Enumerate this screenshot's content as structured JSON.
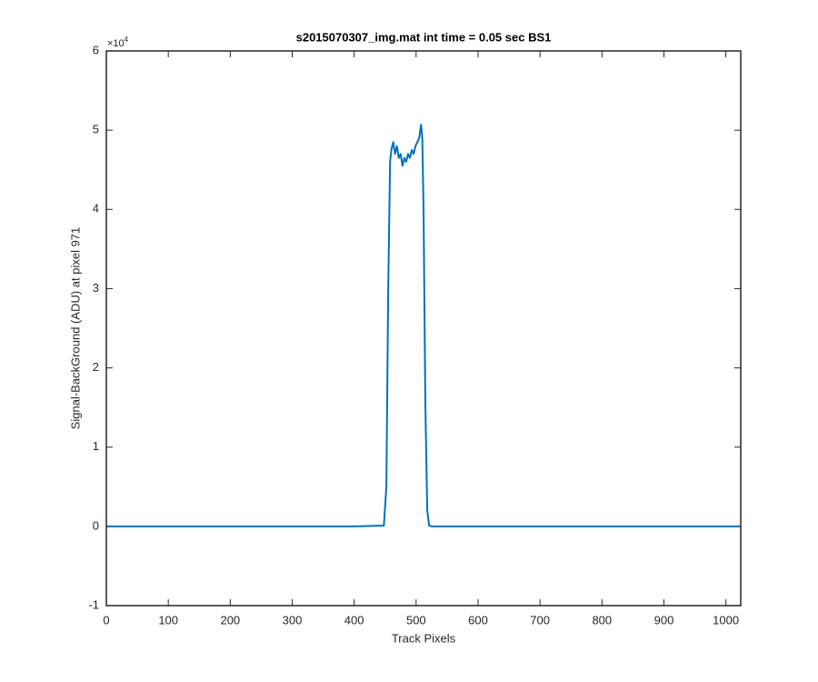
{
  "chart_data": {
    "type": "line",
    "title": "s2015070307_img.mat int time = 0.05 sec   BS1",
    "xlabel": "Track Pixels",
    "ylabel": "Signal-BackGround (ADU) at pixel 971",
    "y_exponent": {
      "base": "×10",
      "power": "4"
    },
    "xlim": [
      0,
      1024
    ],
    "xticks": [
      0,
      100,
      200,
      300,
      400,
      500,
      600,
      700,
      800,
      900,
      1000
    ],
    "ylim": [
      -10000,
      60000
    ],
    "yticks": [
      {
        "value": -10000,
        "label": "-1"
      },
      {
        "value": 0,
        "label": "0"
      },
      {
        "value": 10000,
        "label": "1"
      },
      {
        "value": 20000,
        "label": "2"
      },
      {
        "value": 30000,
        "label": "3"
      },
      {
        "value": 40000,
        "label": "4"
      },
      {
        "value": 50000,
        "label": "5"
      },
      {
        "value": 60000,
        "label": "6"
      }
    ],
    "x": [
      0,
      100,
      200,
      300,
      400,
      448,
      452,
      455,
      458,
      460,
      463,
      466,
      469,
      472,
      475,
      478,
      481,
      484,
      487,
      490,
      493,
      496,
      499,
      502,
      505,
      508,
      510,
      512,
      515,
      518,
      521,
      525,
      600,
      700,
      800,
      900,
      1024
    ],
    "series": [
      {
        "name": "BS1",
        "color": "#0072bd",
        "values": [
          0,
          0,
          0,
          0,
          0,
          100,
          5000,
          30000,
          46000,
          47500,
          48500,
          47000,
          48000,
          46500,
          47000,
          45500,
          46500,
          46000,
          47000,
          46500,
          47500,
          47000,
          48000,
          48500,
          49000,
          50700,
          49000,
          40000,
          15000,
          2000,
          100,
          0,
          0,
          0,
          0,
          0,
          0
        ]
      }
    ]
  }
}
